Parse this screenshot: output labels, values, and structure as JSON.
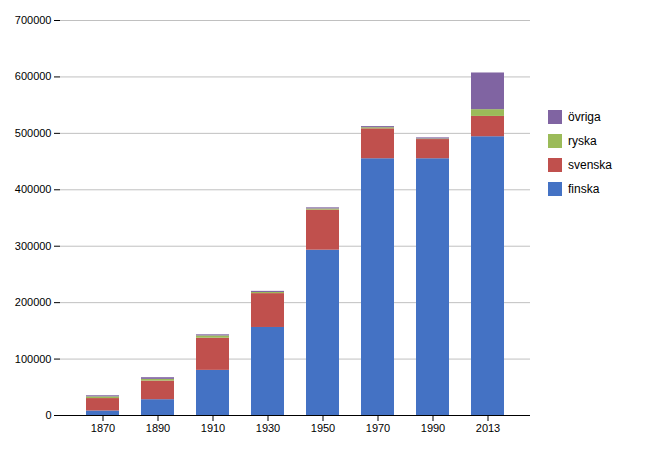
{
  "chart_data": {
    "type": "bar",
    "stacked": true,
    "categories": [
      "1870",
      "1890",
      "1910",
      "1930",
      "1950",
      "1970",
      "1990",
      "2013"
    ],
    "series": [
      {
        "name": "finska",
        "color": "#4472C4",
        "values": [
          8000,
          28000,
          80000,
          156000,
          293000,
          455000,
          455000,
          494000
        ]
      },
      {
        "name": "svenska",
        "color": "#C0504D",
        "values": [
          22000,
          33000,
          57000,
          60000,
          71000,
          53000,
          34000,
          36000
        ]
      },
      {
        "name": "ryska",
        "color": "#9BBB59",
        "values": [
          3000,
          3000,
          4000,
          2000,
          2000,
          2000,
          1000,
          12000
        ]
      },
      {
        "name": "övriga",
        "color": "#8064A2",
        "values": [
          2000,
          3000,
          2000,
          2000,
          2000,
          2000,
          2000,
          65000
        ]
      }
    ],
    "ylim": [
      0,
      700000
    ],
    "yticks": [
      0,
      100000,
      200000,
      300000,
      400000,
      500000,
      600000,
      700000
    ],
    "grid": true,
    "legend": "right"
  }
}
